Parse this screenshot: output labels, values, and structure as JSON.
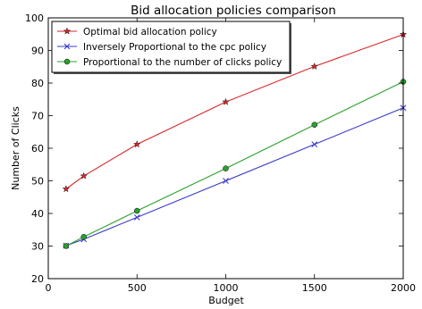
{
  "chart_data": {
    "type": "line",
    "title": "Bid allocation policies comparison",
    "xlabel": "Budget",
    "ylabel": "Number of Clicks",
    "xlim": [
      0,
      2000
    ],
    "ylim": [
      20,
      100
    ],
    "xticks": [
      0,
      500,
      1000,
      1500,
      2000
    ],
    "yticks": [
      20,
      30,
      40,
      50,
      60,
      70,
      80,
      90,
      100
    ],
    "grid": false,
    "legend_position": "upper-left",
    "series": [
      {
        "name": "Optimal bid allocation policy",
        "color": "#d62728",
        "marker": "star",
        "x": [
          100,
          200,
          500,
          1000,
          1500,
          2000
        ],
        "y": [
          47.5,
          51.5,
          61.2,
          74.2,
          85.1,
          94.9
        ]
      },
      {
        "name": "Inversely Proportional to the cpc policy",
        "color": "#3a3ac8",
        "marker": "x",
        "x": [
          100,
          200,
          500,
          1000,
          1500,
          2000
        ],
        "y": [
          30.1,
          32.1,
          38.8,
          50.0,
          61.2,
          72.4
        ]
      },
      {
        "name": "Proportional to the number of clicks policy",
        "color": "#2ca02c",
        "marker": "circle",
        "x": [
          100,
          200,
          500,
          1000,
          1500,
          2000
        ],
        "y": [
          30.0,
          32.8,
          40.8,
          53.8,
          67.2,
          80.4
        ]
      }
    ]
  }
}
